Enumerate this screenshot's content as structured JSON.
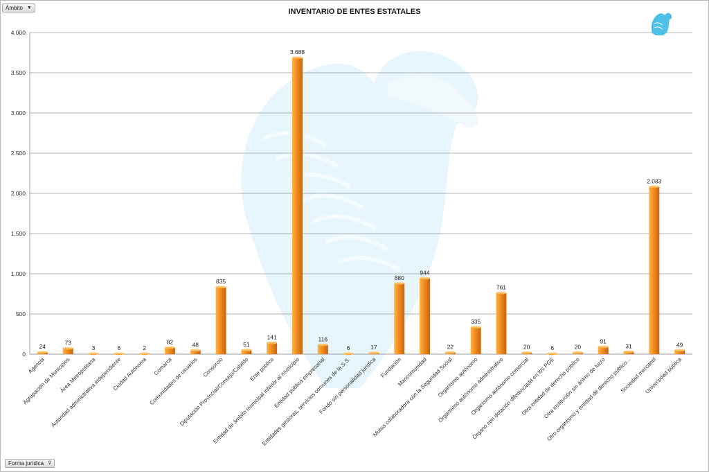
{
  "filters": {
    "ambito_label": "Ámbito",
    "forma_label": "Forma jurídica"
  },
  "icons": {
    "dropdown": "chevron-down-icon",
    "filter": "filter-icon",
    "logo": "eagle-emblem-icon"
  },
  "colors": {
    "bar_light": "#ffb347",
    "bar_mid": "#f08c1e",
    "bar_dark": "#c86410",
    "grid": "#9a9a9a",
    "watermark": "#e3f3fb",
    "logo": "#4fc0e8"
  },
  "chart_data": {
    "type": "bar",
    "title": "INVENTARIO DE ENTES ESTATALES",
    "ylim": [
      0,
      4000
    ],
    "yticks": [
      0,
      500,
      1000,
      1500,
      2000,
      2500,
      3000,
      3500,
      4000
    ],
    "ytick_labels": [
      "0",
      "500",
      "1.000",
      "1.500",
      "2.000",
      "2.500",
      "3.000",
      "3.500",
      "4.000"
    ],
    "grid": true,
    "legend": "none",
    "categories": [
      "Agencia",
      "Agrupación de Municipios",
      "Área Metropolitana",
      "Autoridad administrativa independiente",
      "Ciudad Autónoma",
      "Comarca",
      "Comunidades de usuarios",
      "Consorcio",
      "Diputación Provincial/Consejo/Cabildo",
      "Ente público",
      "Entidad de ámbito municipal inferior al municipio",
      "Entidad pública empresarial",
      "Entidades gestoras, servicios comunes de la S.S.",
      "Fondo sin personalidad jurídica",
      "Fundación",
      "Mancomunidad",
      "Mutua colaboradora con la Seguridad Social",
      "Organismo autónomo",
      "Organismo autónomo administrativo",
      "Organismo autónomo comercial",
      "Órgano con dotación diferenciada en los PGE",
      "Otra entidad de derecho público",
      "Otra institución sin ánimo de lucro",
      "Otro organismo y entidad de derecho público...",
      "Sociedad mercantil",
      "Universidad pública"
    ],
    "values": [
      24,
      73,
      3,
      6,
      2,
      82,
      48,
      835,
      51,
      141,
      3688,
      116,
      6,
      17,
      880,
      944,
      22,
      335,
      761,
      20,
      6,
      20,
      91,
      31,
      2083,
      49
    ],
    "value_labels": [
      "24",
      "73",
      "3",
      "6",
      "2",
      "82",
      "48",
      "835",
      "51",
      "141",
      "3.688",
      "116",
      "6",
      "17",
      "880",
      "944",
      "22",
      "335",
      "761",
      "20",
      "6",
      "20",
      "91",
      "31",
      "2.083",
      "49"
    ]
  }
}
